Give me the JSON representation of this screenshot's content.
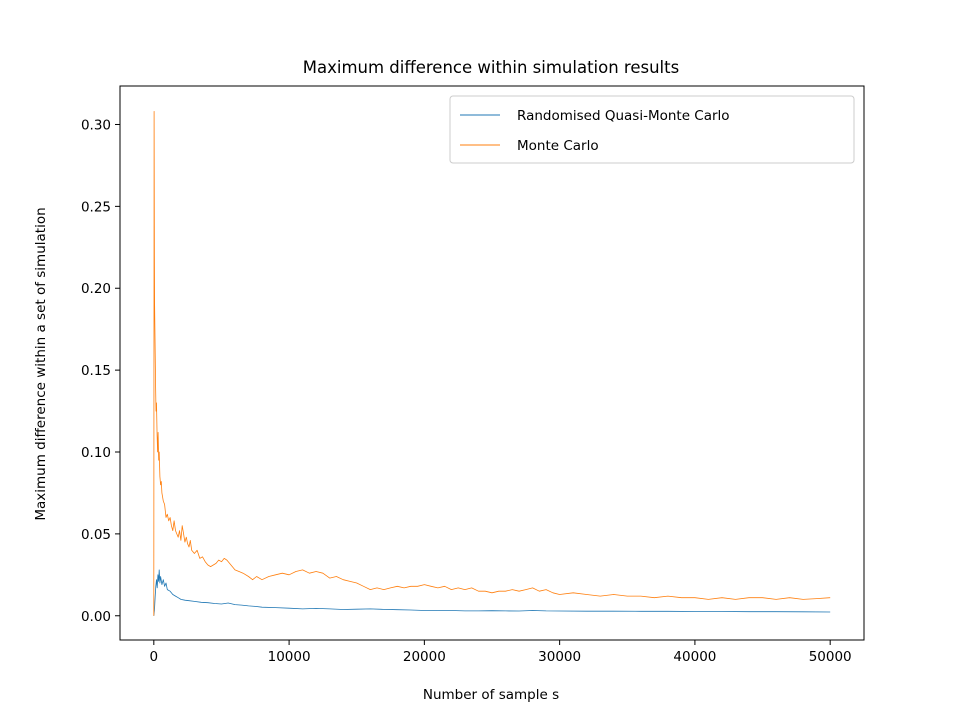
{
  "chart_data": {
    "type": "line",
    "title": "Maximum difference within simulation results",
    "xlabel": "Number of sample s",
    "ylabel": "Maximum difference within a set of simulation",
    "xlim": [
      -2500,
      52500
    ],
    "ylim": [
      -0.0148,
      0.3235
    ],
    "xticks": [
      0,
      10000,
      20000,
      30000,
      40000,
      50000
    ],
    "xtick_labels": [
      "0",
      "10000",
      "20000",
      "30000",
      "40000",
      "50000"
    ],
    "yticks": [
      0.0,
      0.05,
      0.1,
      0.15,
      0.2,
      0.25,
      0.3
    ],
    "ytick_labels": [
      "0.00",
      "0.05",
      "0.10",
      "0.15",
      "0.20",
      "0.25",
      "0.30"
    ],
    "grid": false,
    "legend_position": "top-right",
    "series": [
      {
        "name": "Randomised Quasi-Monte Carlo",
        "color": "#1f77b4",
        "x": [
          0,
          50,
          100,
          150,
          200,
          250,
          300,
          350,
          400,
          450,
          500,
          600,
          700,
          800,
          900,
          1000,
          1200,
          1400,
          1600,
          1800,
          2000,
          2300,
          2600,
          3000,
          3500,
          4000,
          4500,
          5000,
          5500,
          6000,
          6500,
          7000,
          7500,
          8000,
          9000,
          10000,
          11000,
          12000,
          13000,
          14000,
          15000,
          16000,
          17000,
          18000,
          19000,
          20000,
          21000,
          22000,
          23000,
          24000,
          25000,
          26000,
          27000,
          28000,
          29000,
          30000,
          32000,
          34000,
          36000,
          38000,
          40000,
          42000,
          44000,
          46000,
          48000,
          50000
        ],
        "y": [
          0.0,
          0.004,
          0.012,
          0.018,
          0.022,
          0.017,
          0.025,
          0.021,
          0.028,
          0.02,
          0.024,
          0.019,
          0.022,
          0.018,
          0.02,
          0.016,
          0.015,
          0.013,
          0.012,
          0.011,
          0.01,
          0.0095,
          0.0092,
          0.0088,
          0.0082,
          0.008,
          0.0075,
          0.0072,
          0.0078,
          0.0068,
          0.0065,
          0.006,
          0.0057,
          0.0052,
          0.005,
          0.0046,
          0.0042,
          0.0045,
          0.0042,
          0.0038,
          0.004,
          0.0042,
          0.0039,
          0.0037,
          0.0035,
          0.0032,
          0.0033,
          0.0032,
          0.003,
          0.003,
          0.0031,
          0.003,
          0.0029,
          0.0032,
          0.003,
          0.0029,
          0.0028,
          0.0028,
          0.0027,
          0.0027,
          0.0026,
          0.0026,
          0.0025,
          0.0025,
          0.0024,
          0.0023
        ]
      },
      {
        "name": "Monte Carlo",
        "color": "#ff7f0e",
        "x": [
          0,
          20,
          40,
          60,
          80,
          100,
          130,
          160,
          200,
          240,
          280,
          320,
          360,
          400,
          450,
          500,
          550,
          600,
          700,
          800,
          900,
          1000,
          1100,
          1200,
          1300,
          1400,
          1500,
          1600,
          1700,
          1800,
          1900,
          2000,
          2100,
          2200,
          2300,
          2400,
          2500,
          2600,
          2700,
          2800,
          3000,
          3200,
          3400,
          3600,
          3800,
          4000,
          4200,
          4400,
          4600,
          4800,
          5000,
          5200,
          5400,
          5600,
          5800,
          6000,
          6300,
          6600,
          7000,
          7300,
          7600,
          8000,
          8500,
          9000,
          9500,
          10000,
          10500,
          11000,
          11500,
          12000,
          12500,
          13000,
          13500,
          14000,
          14500,
          15000,
          15500,
          16000,
          16500,
          17000,
          17500,
          18000,
          18500,
          19000,
          19500,
          20000,
          20500,
          21000,
          21500,
          22000,
          22500,
          23000,
          23500,
          24000,
          24500,
          25000,
          25500,
          26000,
          26500,
          27000,
          27500,
          28000,
          28500,
          29000,
          29500,
          30000,
          31000,
          32000,
          33000,
          34000,
          35000,
          36000,
          37000,
          38000,
          39000,
          40000,
          41000,
          42000,
          43000,
          44000,
          45000,
          46000,
          47000,
          48000,
          49000,
          50000
        ],
        "y": [
          0.0,
          0.308,
          0.22,
          0.19,
          0.175,
          0.16,
          0.14,
          0.125,
          0.13,
          0.11,
          0.1,
          0.112,
          0.095,
          0.1,
          0.085,
          0.08,
          0.082,
          0.075,
          0.07,
          0.068,
          0.06,
          0.062,
          0.058,
          0.06,
          0.055,
          0.052,
          0.058,
          0.052,
          0.05,
          0.048,
          0.052,
          0.046,
          0.055,
          0.05,
          0.045,
          0.048,
          0.044,
          0.042,
          0.046,
          0.04,
          0.038,
          0.04,
          0.035,
          0.036,
          0.033,
          0.031,
          0.03,
          0.031,
          0.032,
          0.034,
          0.033,
          0.035,
          0.034,
          0.032,
          0.03,
          0.028,
          0.027,
          0.026,
          0.024,
          0.022,
          0.024,
          0.022,
          0.024,
          0.025,
          0.026,
          0.025,
          0.027,
          0.028,
          0.026,
          0.027,
          0.026,
          0.023,
          0.024,
          0.022,
          0.021,
          0.02,
          0.018,
          0.016,
          0.017,
          0.016,
          0.017,
          0.018,
          0.017,
          0.018,
          0.018,
          0.019,
          0.018,
          0.017,
          0.018,
          0.016,
          0.017,
          0.016,
          0.017,
          0.015,
          0.015,
          0.014,
          0.015,
          0.015,
          0.016,
          0.015,
          0.016,
          0.017,
          0.015,
          0.016,
          0.014,
          0.013,
          0.014,
          0.013,
          0.012,
          0.013,
          0.012,
          0.012,
          0.011,
          0.012,
          0.011,
          0.011,
          0.01,
          0.011,
          0.01,
          0.011,
          0.011,
          0.01,
          0.011,
          0.01,
          0.0105,
          0.011
        ]
      }
    ]
  }
}
